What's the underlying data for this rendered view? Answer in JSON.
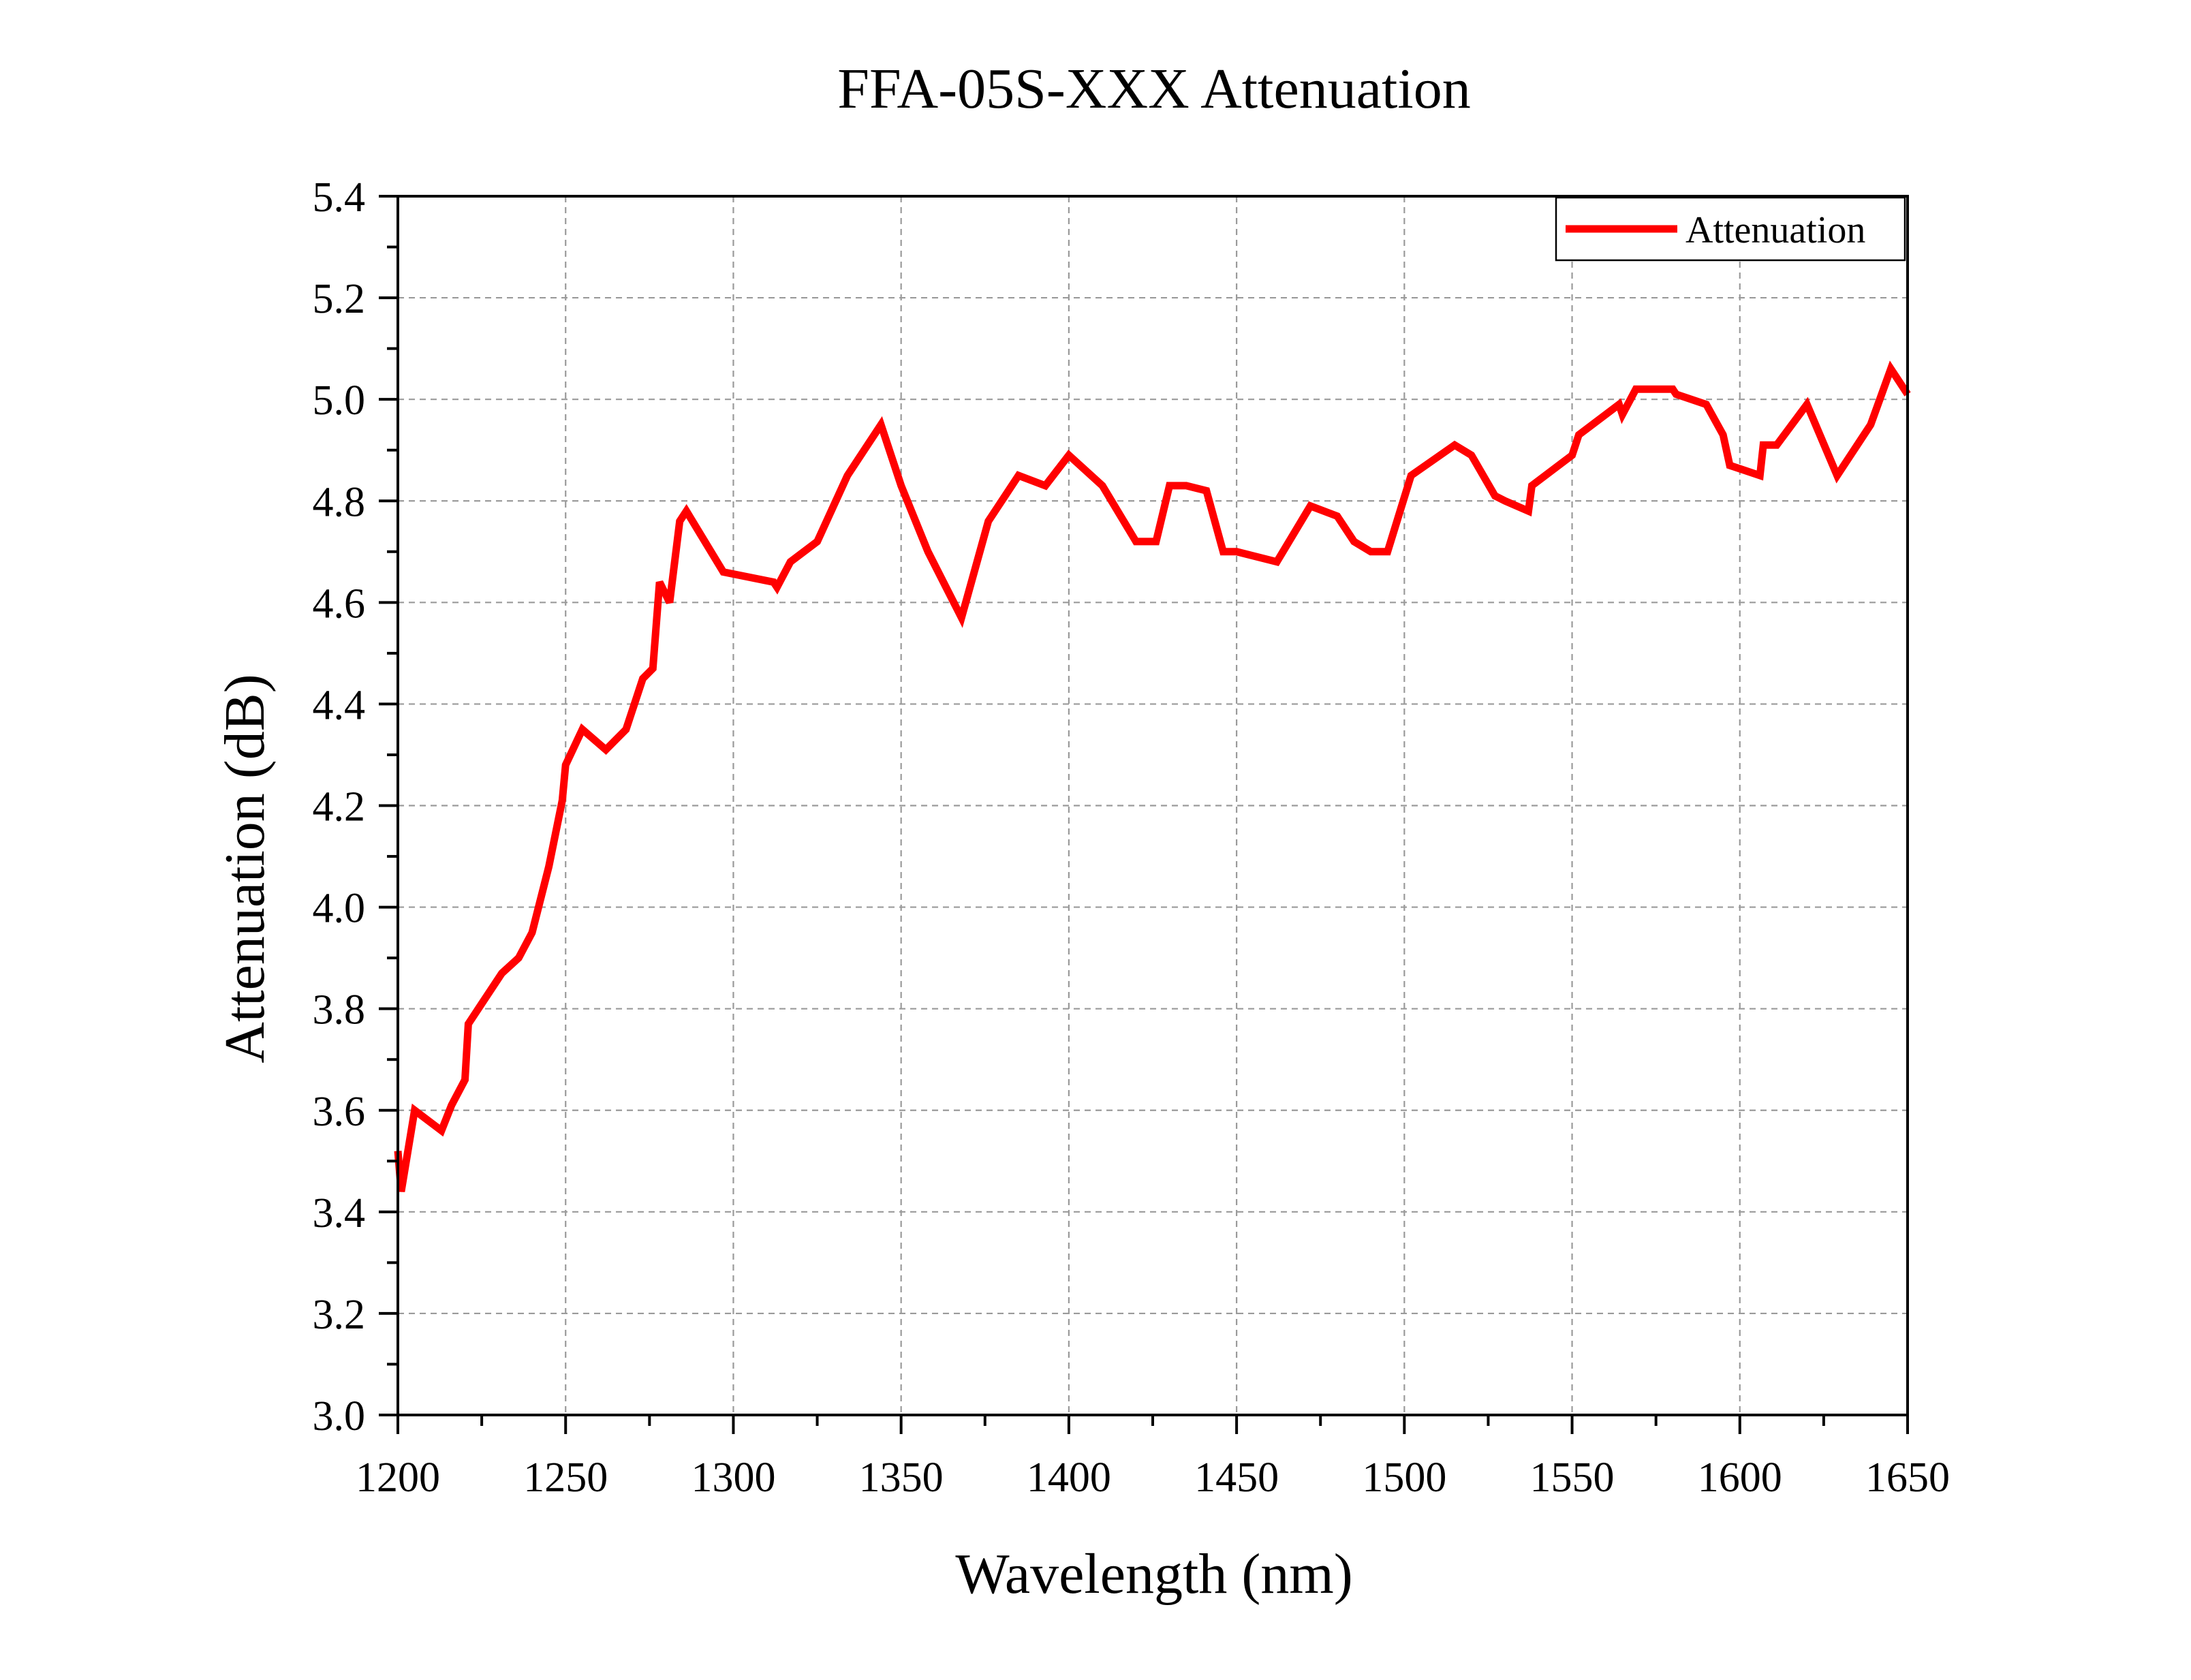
{
  "chart_data": {
    "type": "line",
    "title": "FFA-05S-XXX Attenuation",
    "xlabel": "Wavelength (nm)",
    "ylabel": "Attenuation (dB)",
    "xlim": [
      1200,
      1650
    ],
    "ylim": [
      3.0,
      5.4
    ],
    "xticks": [
      1200,
      1250,
      1300,
      1350,
      1400,
      1450,
      1500,
      1550,
      1600,
      1650
    ],
    "yticks": [
      3.0,
      3.2,
      3.4,
      3.6,
      3.8,
      4.0,
      4.2,
      4.4,
      4.6,
      4.8,
      5.0,
      5.2,
      5.4
    ],
    "grid": true,
    "legend_position": "top-right",
    "series": [
      {
        "name": "Attenuation",
        "color": "#ff0000",
        "points": [
          [
            1200,
            3.52
          ],
          [
            1201,
            3.44
          ],
          [
            1205,
            3.6
          ],
          [
            1213,
            3.56
          ],
          [
            1216,
            3.61
          ],
          [
            1220,
            3.66
          ],
          [
            1221,
            3.77
          ],
          [
            1225,
            3.81
          ],
          [
            1231,
            3.87
          ],
          [
            1236,
            3.9
          ],
          [
            1240,
            3.95
          ],
          [
            1245,
            4.08
          ],
          [
            1249,
            4.21
          ],
          [
            1250,
            4.28
          ],
          [
            1255,
            4.35
          ],
          [
            1262,
            4.31
          ],
          [
            1268,
            4.35
          ],
          [
            1273,
            4.45
          ],
          [
            1276,
            4.47
          ],
          [
            1278,
            4.64
          ],
          [
            1281,
            4.6
          ],
          [
            1284,
            4.76
          ],
          [
            1286,
            4.78
          ],
          [
            1297,
            4.66
          ],
          [
            1312,
            4.64
          ],
          [
            1313,
            4.63
          ],
          [
            1317,
            4.68
          ],
          [
            1325,
            4.72
          ],
          [
            1334,
            4.85
          ],
          [
            1344,
            4.95
          ],
          [
            1350,
            4.83
          ],
          [
            1358,
            4.7
          ],
          [
            1368,
            4.57
          ],
          [
            1376,
            4.76
          ],
          [
            1385,
            4.85
          ],
          [
            1393,
            4.83
          ],
          [
            1400,
            4.89
          ],
          [
            1410,
            4.83
          ],
          [
            1420,
            4.72
          ],
          [
            1426,
            4.72
          ],
          [
            1430,
            4.83
          ],
          [
            1435,
            4.83
          ],
          [
            1441,
            4.82
          ],
          [
            1446,
            4.7
          ],
          [
            1450,
            4.7
          ],
          [
            1462,
            4.68
          ],
          [
            1472,
            4.79
          ],
          [
            1480,
            4.77
          ],
          [
            1485,
            4.72
          ],
          [
            1490,
            4.7
          ],
          [
            1495,
            4.7
          ],
          [
            1502,
            4.85
          ],
          [
            1515,
            4.91
          ],
          [
            1520,
            4.89
          ],
          [
            1527,
            4.81
          ],
          [
            1530,
            4.8
          ],
          [
            1537,
            4.78
          ],
          [
            1538,
            4.83
          ],
          [
            1550,
            4.89
          ],
          [
            1552,
            4.93
          ],
          [
            1564,
            4.99
          ],
          [
            1565,
            4.97
          ],
          [
            1569,
            5.02
          ],
          [
            1580,
            5.02
          ],
          [
            1581,
            5.01
          ],
          [
            1590,
            4.99
          ],
          [
            1595,
            4.93
          ],
          [
            1597,
            4.87
          ],
          [
            1606,
            4.85
          ],
          [
            1607,
            4.91
          ],
          [
            1611,
            4.91
          ],
          [
            1620,
            4.99
          ],
          [
            1629,
            4.85
          ],
          [
            1639,
            4.95
          ],
          [
            1645,
            5.06
          ],
          [
            1650,
            5.01
          ]
        ]
      }
    ]
  }
}
